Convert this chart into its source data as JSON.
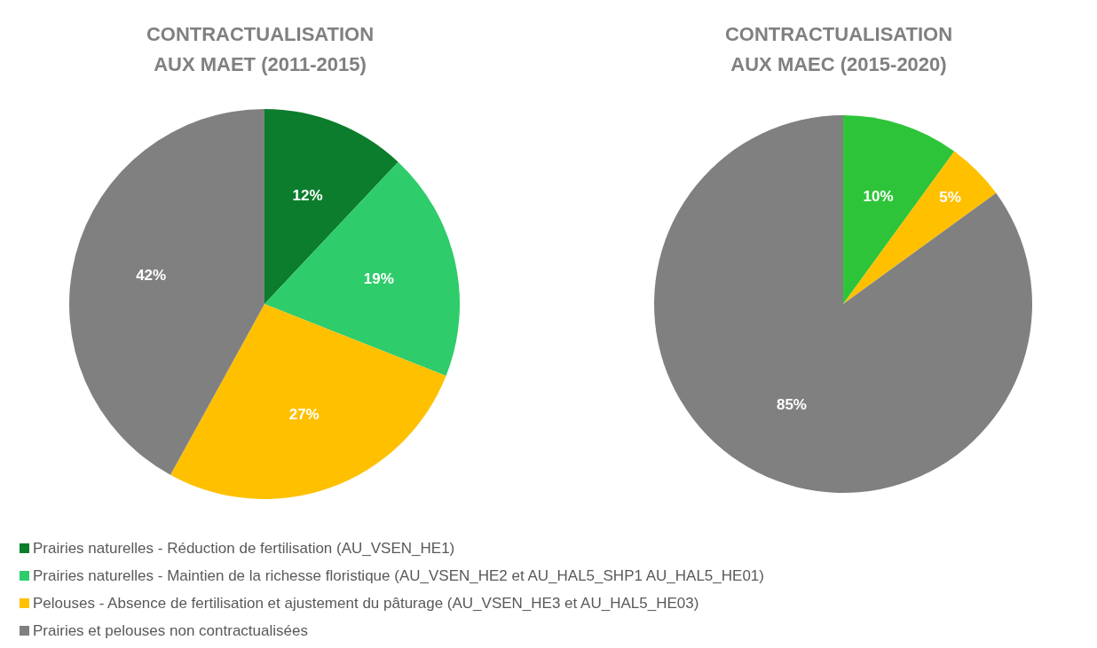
{
  "chart_data": [
    {
      "type": "pie",
      "title": "CONTRACTUALISATION AUX MAET (2011-2015)",
      "categories": [
        "Prairies naturelles - Réduction de fertilisation (AU_VSEN_HE1)",
        "Prairies naturelles - Maintien de la richesse floristique (AU_VSEN_HE2  et AU_HAL5_SHP1  AU_HAL5_HE01)",
        "Pelouses - Absence de fertilisation et ajustement du pâturage (AU_VSEN_HE3 et AU_HAL5_HE03)",
        "Prairies et pelouses non contractualisées"
      ],
      "values": [
        12,
        19,
        27,
        42
      ],
      "value_labels": [
        "12%",
        "19%",
        "27%",
        "42%"
      ],
      "colors": [
        "#0b7d2c",
        "#2ecc6a",
        "#ffc000",
        "#808080"
      ],
      "legend": "bottom"
    },
    {
      "type": "pie",
      "title": "CONTRACTUALISATION AUX MAEC (2015-2020)",
      "categories": [
        null,
        null,
        null
      ],
      "values": [
        10,
        5,
        85
      ],
      "value_labels": [
        "10%",
        "5%",
        "85%"
      ],
      "colors": [
        "#2ec43a",
        "#ffc000",
        "#808080"
      ]
    }
  ]
}
